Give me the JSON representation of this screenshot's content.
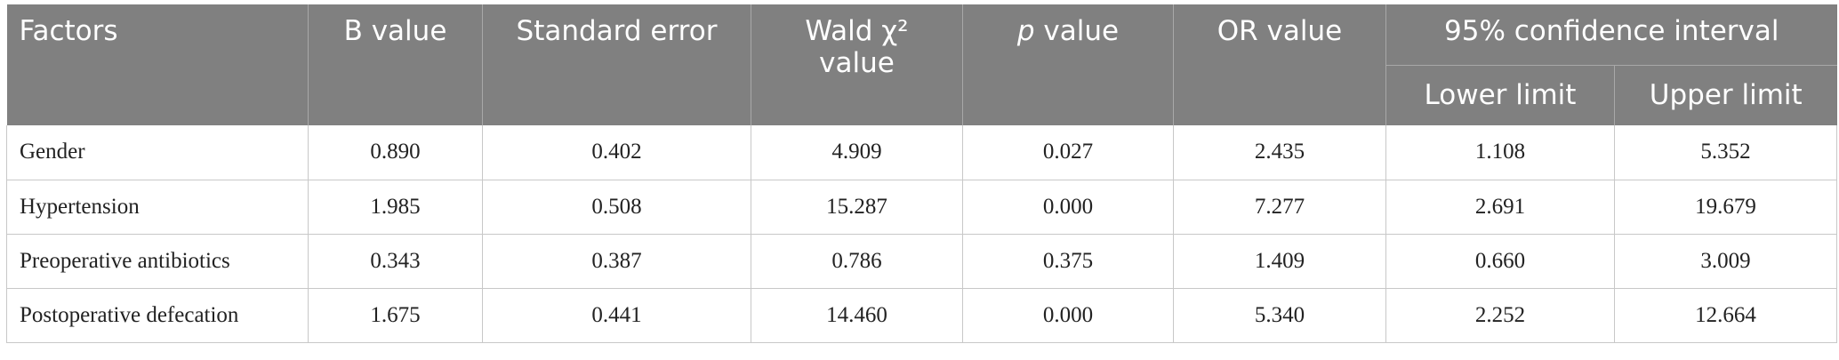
{
  "table": {
    "headers": [
      "Factors",
      "B value",
      "Standard error",
      {
        "line1": "Wald χ²",
        "line2": "value"
      },
      {
        "italic": "p",
        "rest": " value"
      },
      "OR value"
    ],
    "group_header": "95% confidence interval",
    "sub_headers": [
      "Lower limit",
      "Upper limit"
    ],
    "rows": [
      [
        "Gender",
        "0.890",
        "0.402",
        "4.909",
        "0.027",
        "2.435",
        "1.108",
        "5.352"
      ],
      [
        "Hypertension",
        "1.985",
        "0.508",
        "15.287",
        "0.000",
        "7.277",
        "2.691",
        "19.679"
      ],
      [
        "Preoperative antibiotics",
        "0.343",
        "0.387",
        "0.786",
        "0.375",
        "1.409",
        "0.660",
        "3.009"
      ],
      [
        "Postoperative defecation",
        "1.675",
        "0.441",
        "14.460",
        "0.000",
        "5.340",
        "2.252",
        "12.664"
      ]
    ]
  }
}
